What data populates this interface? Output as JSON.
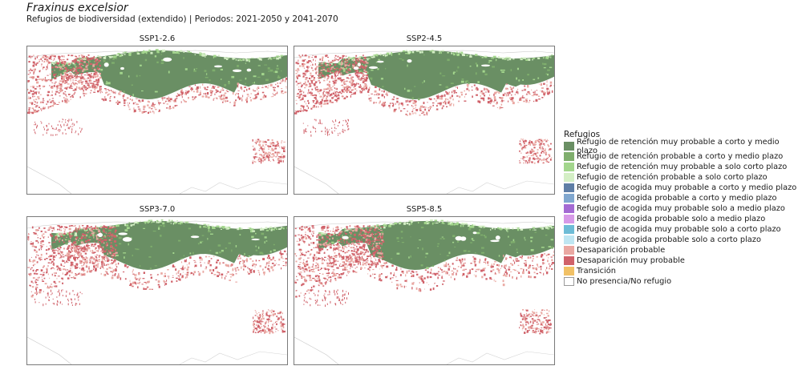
{
  "title": "Fraxinus excelsior",
  "subtitle": "Refugios de biodiversidad (extendido) | Periodos: 2021-2050 y 2041-2070",
  "panels": [
    "SSP1-2.6",
    "SSP2-4.5",
    "SSP3-7.0",
    "SSP5-8.5"
  ],
  "legend": {
    "title": "Refugios",
    "items": [
      {
        "label": "Refugio de retención muy probable a corto y medio plazo",
        "color": "#6a8f64"
      },
      {
        "label": "Refugio de retención probable a corto y medio plazo",
        "color": "#7fae6d"
      },
      {
        "label": "Refugio de retención muy probable a solo corto plazo",
        "color": "#a3d68d"
      },
      {
        "label": "Refugio de retención probable a solo corto plazo",
        "color": "#d4efc5"
      },
      {
        "label": "Refugio de acogida muy probable a corto y medio plazo",
        "color": "#5f7ea6"
      },
      {
        "label": "Refugio de acogida probable a corto y medio plazo",
        "color": "#80a7cf"
      },
      {
        "label": "Refugio de acogida muy probable solo a medio plazo",
        "color": "#a46ad3"
      },
      {
        "label": "Refugio de acogida probable solo a medio plazo",
        "color": "#d79ae8"
      },
      {
        "label": "Refugio de acogida muy probable solo a corto plazo",
        "color": "#6ebcd6"
      },
      {
        "label": "Refugio de acogida probable solo a corto plazo",
        "color": "#bfe6f2"
      },
      {
        "label": "Desaparición probable",
        "color": "#eaa8a2"
      },
      {
        "label": "Desaparición muy probable",
        "color": "#d0626a"
      },
      {
        "label": "Transición",
        "color": "#f1c166"
      },
      {
        "label": "No presencia/No refugio",
        "color": "#ffffff"
      }
    ]
  }
}
